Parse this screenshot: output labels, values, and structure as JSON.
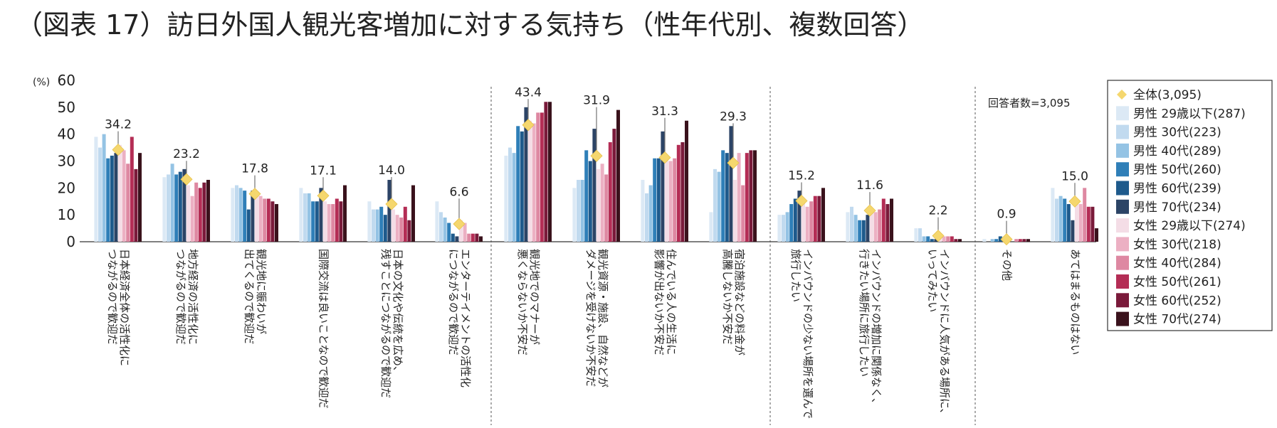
{
  "chart_data": {
    "type": "bar",
    "title": "（図表 17）訪日外国人観光客増加に対する気持ち（性年代別、複数回答）",
    "ylabel": "(%)",
    "ylim": [
      0,
      60
    ],
    "yticks": [
      0,
      10,
      20,
      30,
      40,
      50,
      60
    ],
    "respondents_note": "回答者数=3,095",
    "categories": [
      [
        "日本経済全体の活性化に",
        "つながるので歓迎だ"
      ],
      [
        "地方経済の活性化に",
        "つながるので歓迎だ"
      ],
      [
        "観光地に賑わいが",
        "出てくるので歓迎だ"
      ],
      [
        "国際交流は良いことなので歓迎だ"
      ],
      [
        "日本の文化や伝統を広め、",
        "残すことにつながるので歓迎だ"
      ],
      [
        "エンターテイメントの活性化",
        "につながるので歓迎だ"
      ],
      [
        "観光地でのマナーが",
        "悪くならないか不安だ"
      ],
      [
        "観光資源・施設、自然などが",
        "ダメージを受けないか不安だ"
      ],
      [
        "住んでいる人の生活に",
        "影響が出ないか不安だ"
      ],
      [
        "宿泊施設などの料金が",
        "高騰しないか不安だ"
      ],
      [
        "インバウンドの少ない場所を選んで",
        "旅行したい"
      ],
      [
        "インバウンドの増加に関係なく、",
        "行きたい場所に旅行したい"
      ],
      [
        "インバウンドに人気がある場所に、",
        "いってみたい"
      ],
      [
        "その他"
      ],
      [
        "あてはまるものはない"
      ]
    ],
    "total": {
      "name": "全体(3,095)",
      "color": "#f5d76e",
      "values": [
        34.2,
        23.2,
        17.8,
        17.1,
        14.0,
        6.6,
        43.4,
        31.9,
        31.3,
        29.3,
        15.2,
        11.6,
        2.2,
        0.9,
        15.0
      ],
      "labels": [
        "34.2",
        "23.2",
        "17.8",
        "17.1",
        "14.0",
        "6.6",
        "43.4",
        "31.9",
        "31.3",
        "29.3",
        "15.2",
        "11.6",
        "2.2",
        "0.9",
        "15.0"
      ]
    },
    "series": [
      {
        "name": "男性 29歳以下(287)",
        "color": "#dce9f5",
        "values": [
          39,
          24,
          20,
          20,
          15,
          15,
          32,
          20,
          23,
          11,
          10,
          11,
          5,
          1,
          20
        ]
      },
      {
        "name": "男性 30代(223)",
        "color": "#c1daef",
        "values": [
          35,
          25,
          21,
          18,
          12,
          11,
          35,
          23,
          18,
          27,
          10,
          13,
          5,
          0,
          16
        ]
      },
      {
        "name": "男性 40代(289)",
        "color": "#94c3e4",
        "values": [
          40,
          29,
          20,
          18,
          12,
          9,
          33,
          23,
          21,
          26,
          11,
          10,
          2,
          1,
          17
        ]
      },
      {
        "name": "男性 50代(260)",
        "color": "#2f7fb8",
        "values": [
          31,
          25,
          19,
          15,
          13,
          7,
          43,
          34,
          31,
          34,
          14,
          8,
          2,
          1,
          16
        ]
      },
      {
        "name": "男性 60代(239)",
        "color": "#1e5a8c",
        "values": [
          32,
          26,
          12,
          15,
          10,
          3,
          41,
          30,
          31,
          33,
          16,
          8,
          1,
          2,
          14
        ]
      },
      {
        "name": "男性 70代(234)",
        "color": "#2c4466",
        "values": [
          33,
          27,
          19,
          20,
          23,
          2,
          50,
          42,
          41,
          43,
          19,
          10,
          1,
          1,
          8
        ]
      },
      {
        "name": "女性 29歳以下(274)",
        "color": "#f4dde6",
        "values": [
          36,
          21,
          18,
          15,
          12,
          8,
          45,
          27,
          31,
          23,
          16,
          12,
          3,
          1,
          15
        ]
      },
      {
        "name": "女性 30代(218)",
        "color": "#ecb0c3",
        "values": [
          34,
          17,
          17,
          14,
          10,
          7,
          44,
          29,
          30,
          33,
          13,
          11,
          2,
          0,
          14
        ]
      },
      {
        "name": "女性 40代(284)",
        "color": "#de88a2",
        "values": [
          29,
          22,
          16,
          14,
          9,
          3,
          48,
          25,
          31,
          21,
          15,
          12,
          2,
          1,
          20
        ]
      },
      {
        "name": "女性 50代(261)",
        "color": "#b42d55",
        "values": [
          39,
          20,
          16,
          16,
          13,
          3,
          48,
          37,
          36,
          33,
          17,
          16,
          2,
          1,
          13
        ]
      },
      {
        "name": "女性 60代(252)",
        "color": "#7a1a3a",
        "values": [
          27,
          22,
          15,
          15,
          8,
          3,
          52,
          42,
          37,
          34,
          17,
          14,
          1,
          1,
          13
        ]
      },
      {
        "name": "女性 70代(274)",
        "color": "#3a121c",
        "values": [
          33,
          23,
          14,
          21,
          21,
          2,
          52,
          49,
          45,
          34,
          20,
          16,
          1,
          1,
          5
        ]
      }
    ]
  }
}
